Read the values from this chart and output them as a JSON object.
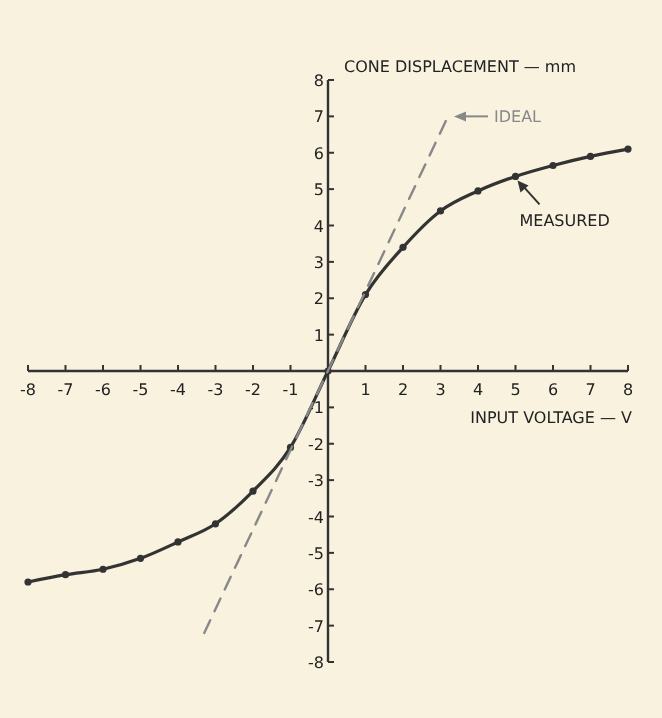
{
  "chart_data": {
    "type": "line",
    "ylabel": "CONE DISPLACEMENT — mm",
    "xlabel": "INPUT VOLTAGE — V",
    "xlim": [
      -8,
      8
    ],
    "ylim": [
      -8,
      8
    ],
    "xticks": [
      -8,
      -7,
      -6,
      -5,
      -4,
      -3,
      -2,
      -1,
      1,
      2,
      3,
      4,
      5,
      6,
      7,
      8
    ],
    "yticks": [
      -8,
      -7,
      -6,
      -5,
      -4,
      -3,
      -2,
      -1,
      1,
      2,
      3,
      4,
      5,
      6,
      7,
      8
    ],
    "grid": false,
    "legend": "top right",
    "series": [
      {
        "name": "MEASURED",
        "color": "#333333",
        "marker": "circle",
        "line_style": "solid",
        "x": [
          -8,
          -7,
          -6,
          -5,
          -4,
          -3,
          -2,
          -1,
          0,
          1,
          2,
          3,
          4,
          5,
          6,
          7,
          8
        ],
        "values": [
          -5.8,
          -5.6,
          -5.45,
          -5.15,
          -4.7,
          -4.2,
          -3.3,
          -2.1,
          0,
          2.1,
          3.4,
          4.4,
          4.95,
          5.35,
          5.65,
          5.9,
          6.1
        ]
      },
      {
        "name": "IDEAL",
        "color": "#888888",
        "marker": "none",
        "line_style": "dashed",
        "x": [
          -3.3,
          3.2
        ],
        "values": [
          -7.2,
          7
        ]
      }
    ]
  }
}
